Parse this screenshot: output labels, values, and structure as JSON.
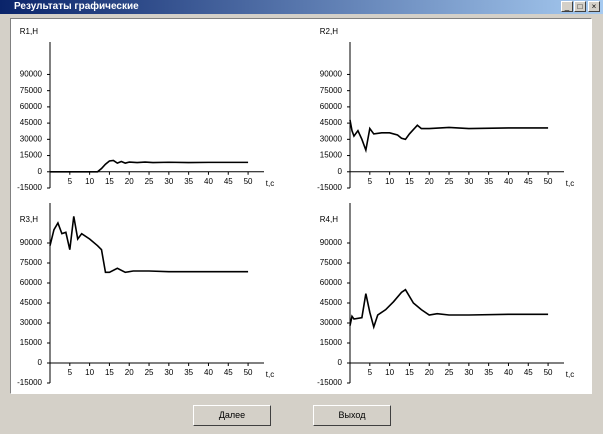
{
  "window": {
    "title": "Результаты графические"
  },
  "buttons": [
    "Далее",
    "Выход"
  ],
  "chart_data": [
    {
      "type": "line",
      "y_label": "R1,H",
      "x_label": "t,c",
      "color": "#000000",
      "x": [
        0,
        12,
        13,
        14,
        15,
        16,
        17,
        18,
        19,
        20,
        22,
        24,
        26,
        30,
        35,
        40,
        45,
        50
      ],
      "values": [
        0,
        0,
        3000,
        7000,
        10000,
        10500,
        8000,
        9500,
        8000,
        9000,
        8500,
        9000,
        8500,
        8800,
        8500,
        8700,
        8700,
        8700
      ],
      "xlim": [
        0,
        52
      ],
      "ylim": [
        -15000,
        120000
      ],
      "xticks": [
        5,
        10,
        15,
        20,
        25,
        30,
        35,
        40,
        45,
        50
      ],
      "yticks": [
        -15000,
        0,
        15000,
        30000,
        45000,
        60000,
        75000,
        90000
      ]
    },
    {
      "type": "line",
      "y_label": "R2,H",
      "x_label": "t,c",
      "color": "#000000",
      "x": [
        0,
        0.5,
        1,
        2,
        3,
        4,
        5,
        6,
        8,
        10,
        12,
        13,
        14,
        15,
        16,
        17,
        18,
        20,
        25,
        30,
        40,
        50
      ],
      "values": [
        48000,
        38000,
        33000,
        38000,
        30000,
        20000,
        40000,
        35000,
        36000,
        36000,
        34000,
        31000,
        30000,
        35000,
        39000,
        43000,
        40000,
        40000,
        41000,
        40000,
        40500,
        40500
      ],
      "xlim": [
        0,
        52
      ],
      "ylim": [
        -15000,
        120000
      ],
      "xticks": [
        5,
        10,
        15,
        20,
        25,
        30,
        35,
        40,
        45,
        50
      ],
      "yticks": [
        -15000,
        0,
        15000,
        30000,
        45000,
        60000,
        75000,
        90000
      ]
    },
    {
      "type": "line",
      "y_label": "R3,H",
      "x_label": "t,c",
      "color": "#000000",
      "x": [
        0,
        1,
        2,
        3,
        4,
        5,
        6,
        7,
        8,
        10,
        12,
        13,
        14,
        15,
        17,
        19,
        21,
        25,
        30,
        40,
        50
      ],
      "values": [
        88000,
        100000,
        105000,
        97000,
        98000,
        85000,
        110000,
        93000,
        97000,
        93000,
        88000,
        85000,
        68000,
        68000,
        71000,
        68000,
        69000,
        69000,
        68500,
        68500,
        68500
      ],
      "xlim": [
        0,
        52
      ],
      "ylim": [
        -15000,
        120000
      ],
      "xticks": [
        5,
        10,
        15,
        20,
        25,
        30,
        35,
        40,
        45,
        50
      ],
      "yticks": [
        -15000,
        0,
        15000,
        30000,
        45000,
        60000,
        75000,
        90000
      ]
    },
    {
      "type": "line",
      "y_label": "R4,H",
      "x_label": "t,c",
      "color": "#000000",
      "x": [
        0,
        0.5,
        1,
        3,
        4,
        5,
        6,
        7,
        9,
        11,
        13,
        14,
        16,
        18,
        20,
        22,
        25,
        30,
        40,
        50
      ],
      "values": [
        28000,
        35000,
        33000,
        34000,
        52000,
        38000,
        27000,
        36000,
        40000,
        46000,
        53000,
        55000,
        45000,
        40000,
        36000,
        37000,
        36000,
        36000,
        36500,
        36500
      ],
      "xlim": [
        0,
        52
      ],
      "ylim": [
        -15000,
        120000
      ],
      "xticks": [
        5,
        10,
        15,
        20,
        25,
        30,
        35,
        40,
        45,
        50
      ],
      "yticks": [
        -15000,
        0,
        15000,
        30000,
        45000,
        60000,
        75000,
        90000
      ]
    }
  ]
}
